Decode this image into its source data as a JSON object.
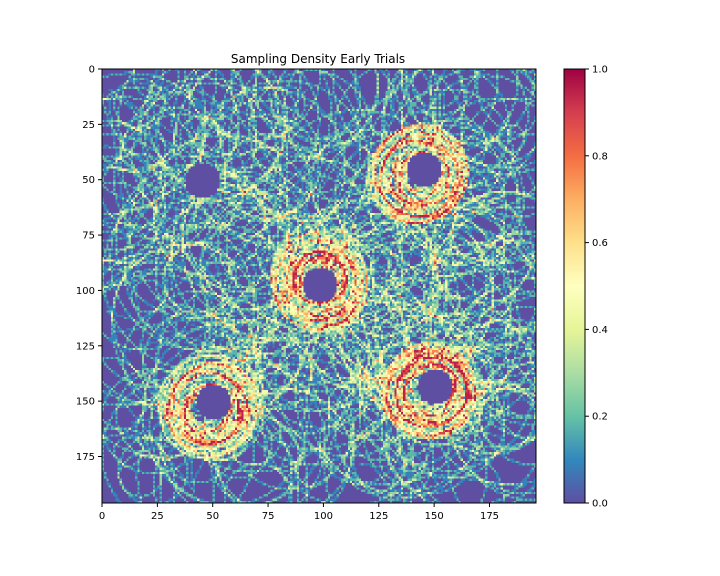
{
  "chart_data": {
    "type": "heatmap",
    "title": "Sampling Density Early Trials",
    "xlabel": "",
    "ylabel": "",
    "grid_size": [
      196,
      196
    ],
    "xlim": [
      0,
      196
    ],
    "ylim": [
      196,
      0
    ],
    "x_ticks": [
      0,
      25,
      50,
      75,
      100,
      125,
      150,
      175
    ],
    "x_tick_labels": [
      "0",
      "25",
      "50",
      "75",
      "100",
      "125",
      "150",
      "175"
    ],
    "y_ticks": [
      0,
      25,
      50,
      75,
      100,
      125,
      150,
      175
    ],
    "y_tick_labels": [
      "0",
      "25",
      "50",
      "75",
      "100",
      "125",
      "150",
      "175"
    ],
    "colormap": "Spectral_r",
    "colorbar": {
      "range": [
        0.0,
        1.0
      ],
      "ticks": [
        0.0,
        0.2,
        0.4,
        0.6,
        0.8,
        1.0
      ],
      "tick_labels": [
        "0.0",
        "0.2",
        "0.4",
        "0.6",
        "0.8",
        "1.0"
      ]
    },
    "low_density_holes": [
      {
        "x": 45,
        "y": 50
      },
      {
        "x": 145,
        "y": 45
      },
      {
        "x": 98,
        "y": 97
      },
      {
        "x": 50,
        "y": 150
      },
      {
        "x": 150,
        "y": 143
      }
    ],
    "high_density_rings": [
      {
        "x": 98,
        "y": 95
      },
      {
        "x": 143,
        "y": 48
      },
      {
        "x": 48,
        "y": 153
      },
      {
        "x": 148,
        "y": 145
      }
    ],
    "colors": {
      "low": "#5e4fa2",
      "mid": "#ffffbf",
      "high": "#9e0142"
    }
  }
}
